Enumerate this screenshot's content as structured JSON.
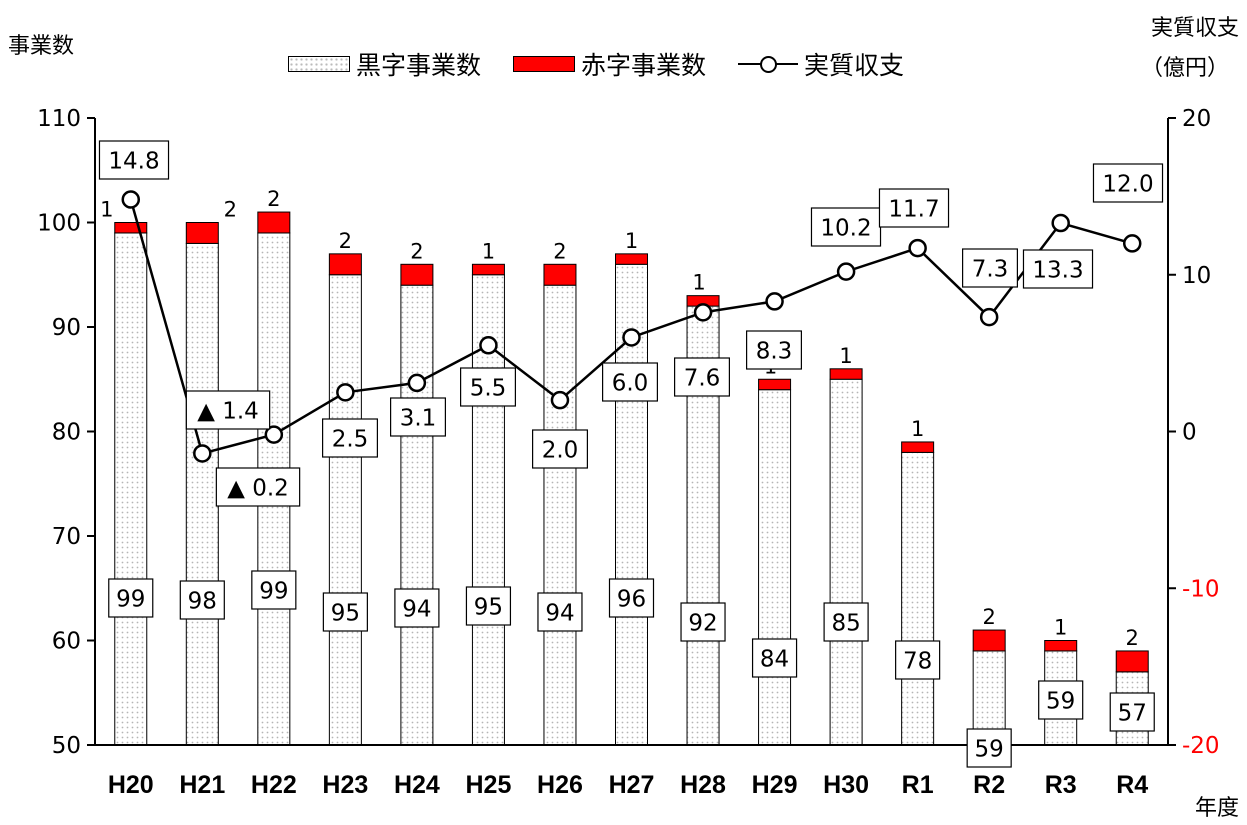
{
  "chart_data": {
    "type": "bar",
    "categories": [
      "H20",
      "H21",
      "H22",
      "H23",
      "H24",
      "H25",
      "H26",
      "H27",
      "H28",
      "H29",
      "H30",
      "R1",
      "R2",
      "R3",
      "R4"
    ],
    "series": [
      {
        "name": "黒字事業数",
        "kind": "bar-stacked",
        "color": "#dddddd",
        "values": [
          99,
          98,
          99,
          95,
          94,
          95,
          94,
          96,
          92,
          84,
          85,
          78,
          59,
          59,
          57
        ]
      },
      {
        "name": "赤字事業数",
        "kind": "bar-stacked",
        "color": "#ff0000",
        "values": [
          1,
          2,
          2,
          2,
          2,
          1,
          2,
          1,
          1,
          1,
          1,
          1,
          2,
          1,
          2
        ]
      },
      {
        "name": "実質収支",
        "kind": "line",
        "axis": "right",
        "color": "#000000",
        "values": [
          14.8,
          -1.4,
          -0.2,
          2.5,
          3.1,
          5.5,
          2.0,
          6.0,
          7.6,
          8.3,
          10.2,
          11.7,
          7.3,
          13.3,
          12.0
        ]
      }
    ],
    "line_labels": [
      "14.8",
      "▲ 1.4",
      "▲ 0.2",
      "2.5",
      "3.1",
      "5.5",
      "2.0",
      "6.0",
      "7.6",
      "8.3",
      "10.2",
      "11.7",
      "7.3",
      "13.3",
      "12.0"
    ],
    "ylabel_left": "事業数",
    "ylabel_right_1": "実質収支",
    "ylabel_right_2": "（億円）",
    "xlabel": "年度",
    "ylim_left": [
      50,
      110
    ],
    "yticks_left": [
      50,
      60,
      70,
      80,
      90,
      100,
      110
    ],
    "ylim_right": [
      -20,
      20
    ],
    "yticks_right": [
      -20,
      -10,
      0,
      10,
      20
    ],
    "negative_tick_color": "#ff0000",
    "legend_position": "top",
    "grid": false
  }
}
